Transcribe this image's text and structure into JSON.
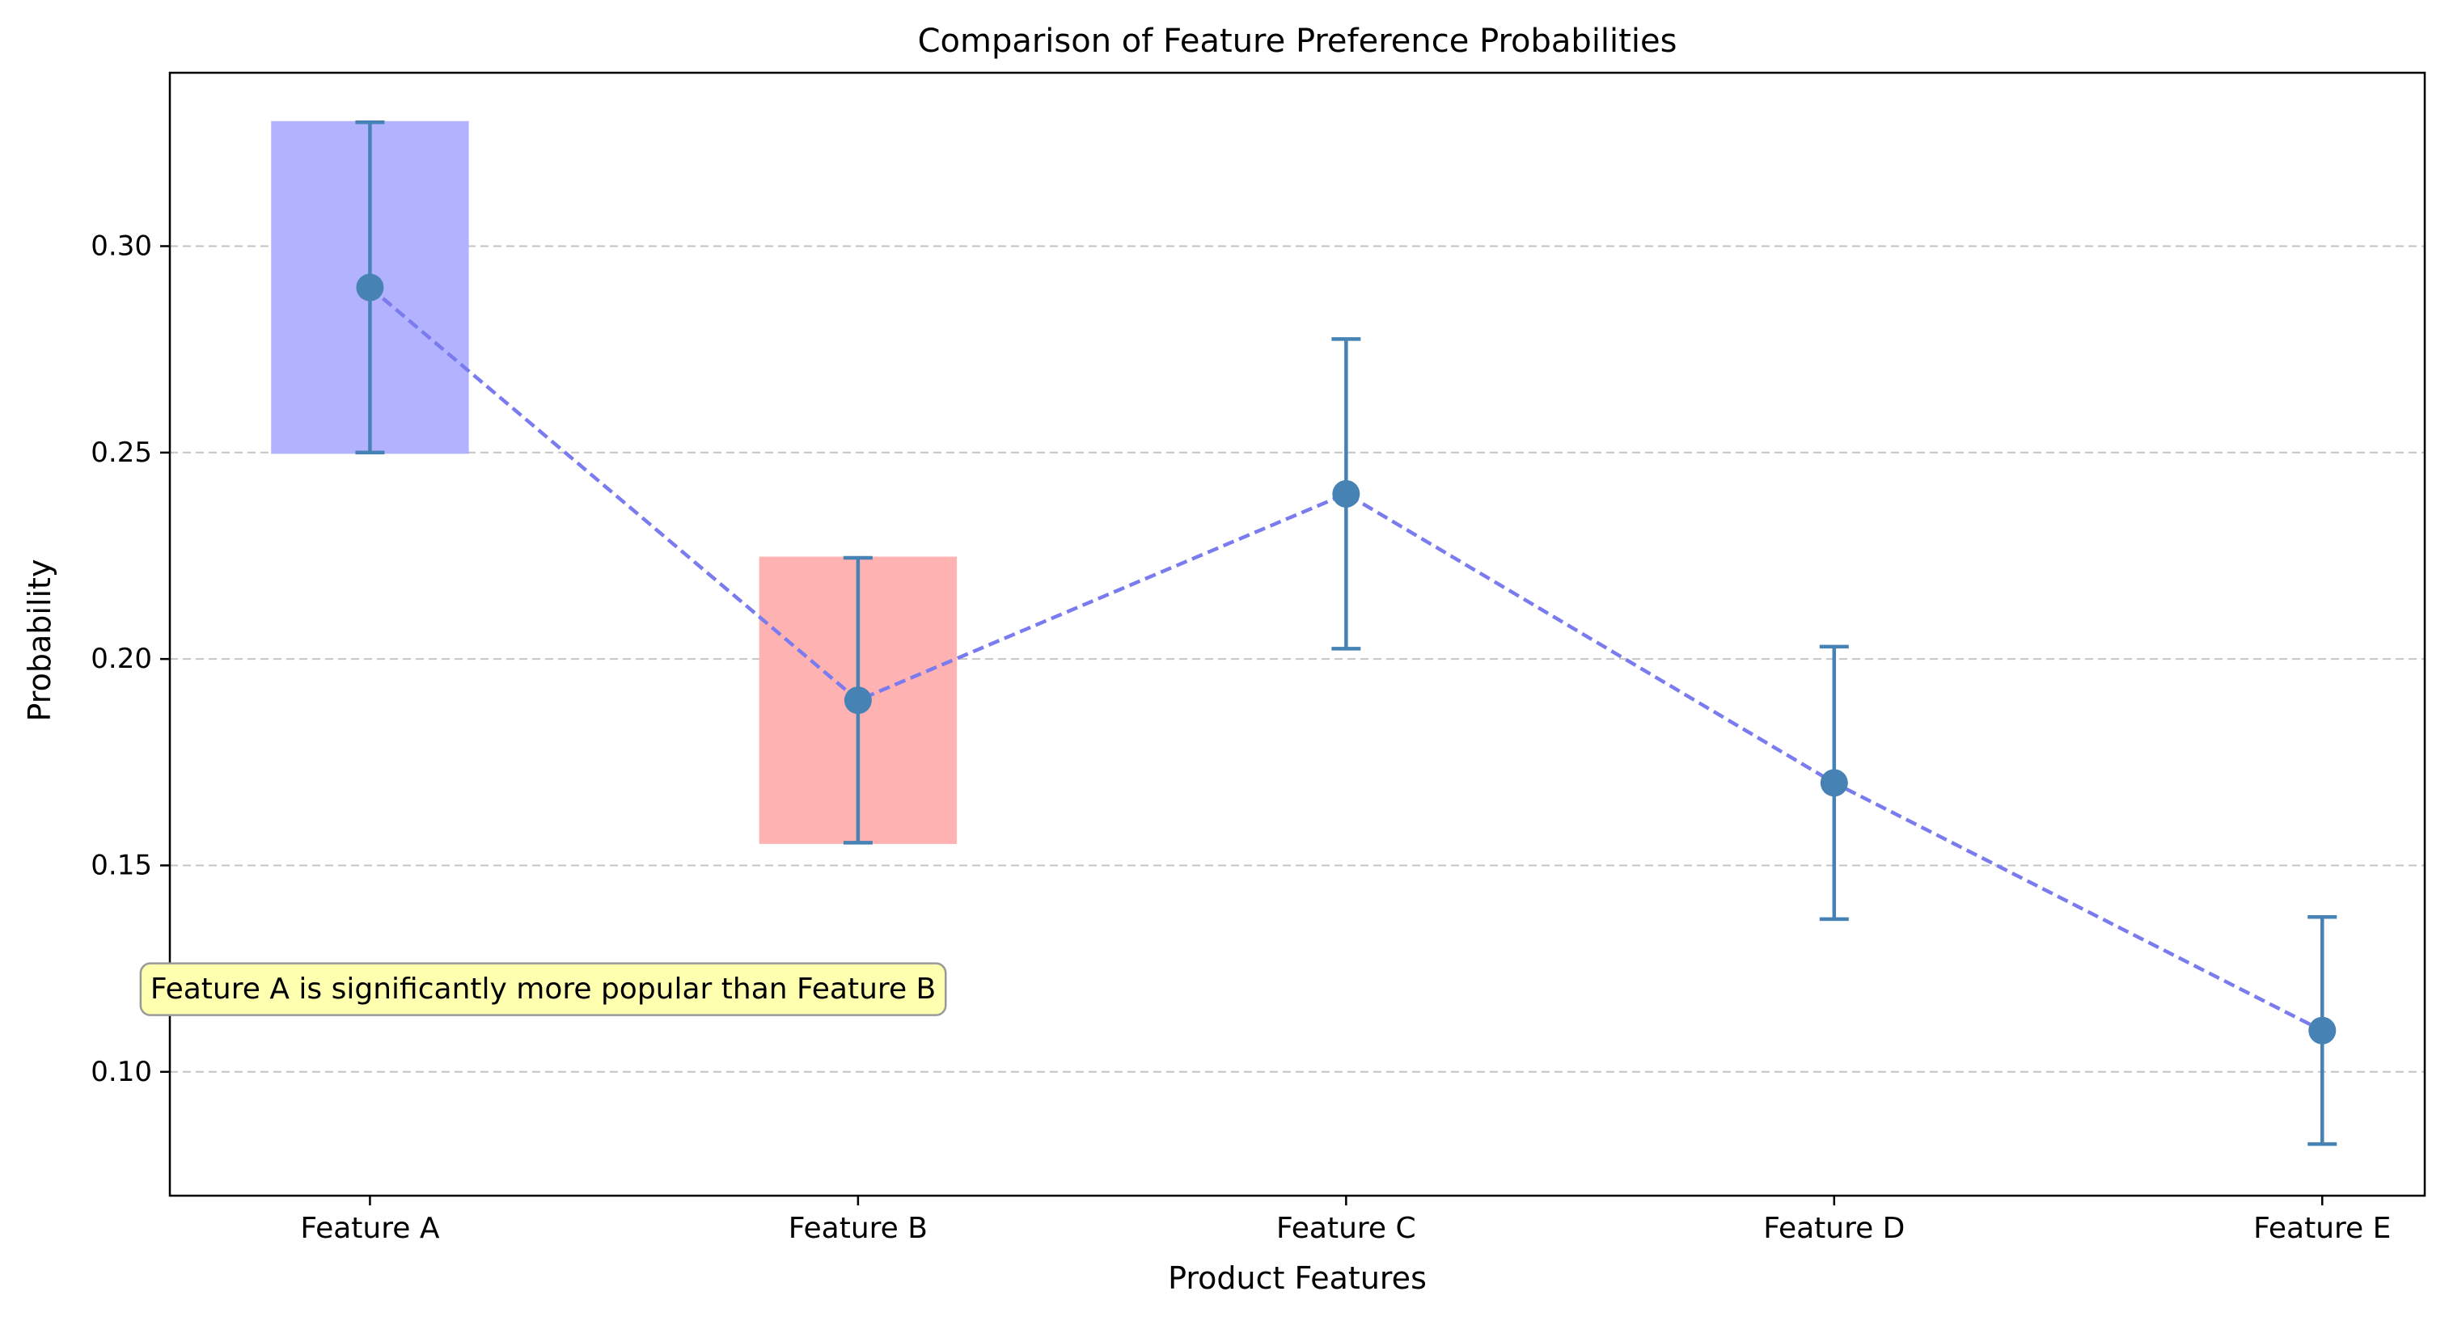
{
  "chart_data": {
    "type": "scatter",
    "title": "Comparison of Feature Preference Probabilities",
    "xlabel": "Product Features",
    "ylabel": "Probability",
    "categories": [
      "Feature A",
      "Feature B",
      "Feature C",
      "Feature D",
      "Feature E"
    ],
    "values": [
      0.29,
      0.19,
      0.24,
      0.17,
      0.11
    ],
    "error_low": [
      0.25,
      0.1555,
      0.2025,
      0.137,
      0.0825
    ],
    "error_high": [
      0.33,
      0.2245,
      0.2775,
      0.203,
      0.1375
    ],
    "ylim": [
      0.07,
      0.342
    ],
    "yticks": [
      0.1,
      0.15,
      0.2,
      0.25,
      0.3
    ],
    "ytick_labels": [
      "0.10",
      "0.15",
      "0.20",
      "0.25",
      "0.30"
    ],
    "grid": "y-dashed",
    "line_style": "dashed",
    "highlights": [
      {
        "category": "Feature A",
        "low": 0.25,
        "high": 0.33,
        "color": "#b2b2ff"
      },
      {
        "category": "Feature B",
        "low": 0.1555,
        "high": 0.2245,
        "color": "#ffb2b2"
      }
    ],
    "annotation": {
      "text": "Feature A is significantly more popular than Feature B",
      "x": -0.45,
      "y": 0.12
    },
    "colors": {
      "marker": "#4682b4",
      "line": "#7b7bf0",
      "grid": "#c4c4c4",
      "annotation_bg": "#ffffb0"
    }
  }
}
